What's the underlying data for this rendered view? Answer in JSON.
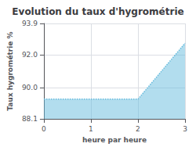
{
  "chart_data": {
    "type": "area",
    "title": "Evolution du taux d'hygrométrie",
    "xlabel": "heure par heure",
    "ylabel": "Taux hygrométrie %",
    "x": [
      0,
      2,
      3
    ],
    "values": [
      89.3,
      89.3,
      92.7
    ],
    "color": "#66bbdd",
    "line_style": "dotted",
    "xlim": [
      0,
      3
    ],
    "ylim": [
      88.1,
      93.9
    ],
    "xticks": [
      0,
      1,
      2,
      3
    ],
    "yticks": [
      88.1,
      {
        "value": 90,
        "label": "90.0"
      },
      {
        "value": 92,
        "label": "92.0"
      },
      93.9
    ],
    "grid": true
  }
}
